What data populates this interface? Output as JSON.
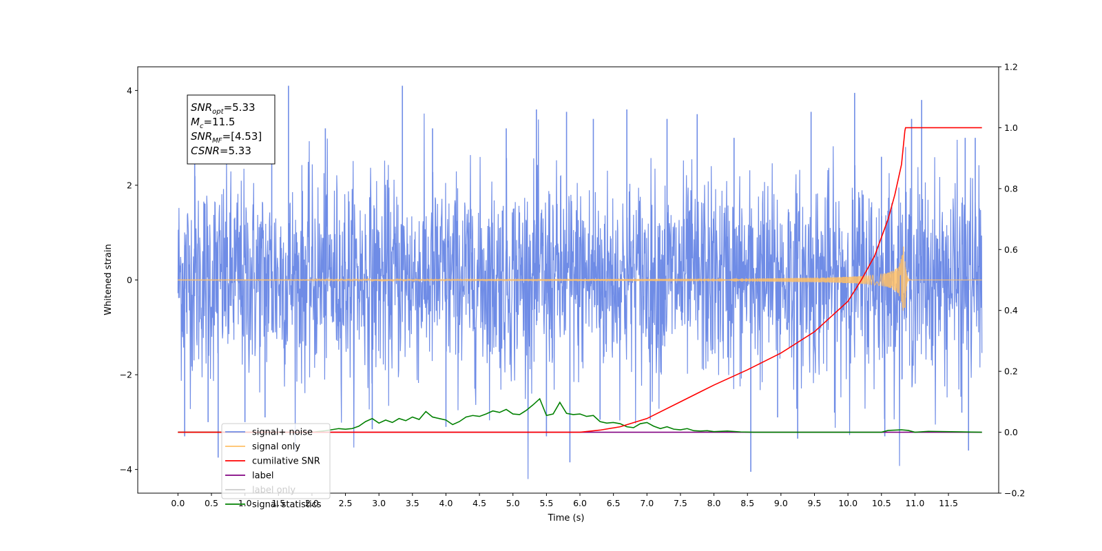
{
  "chart_data": {
    "type": "line",
    "xlabel": "Time (s)",
    "ylabel": "Whitened strain",
    "xlim": [
      -0.6,
      12.25
    ],
    "ylim": [
      -4.5,
      4.5
    ],
    "y2lim": [
      -0.2,
      1.2
    ],
    "x_ticks": [
      0.0,
      0.5,
      1.0,
      1.5,
      2.0,
      2.5,
      3.0,
      3.5,
      4.0,
      4.5,
      5.0,
      5.5,
      6.0,
      6.5,
      7.0,
      7.5,
      8.0,
      8.5,
      9.0,
      9.5,
      10.0,
      10.5,
      11.0,
      11.5
    ],
    "x_tick_labels": [
      "0.0",
      "0.5",
      "1.0",
      "1.5",
      "2.0",
      "2.5",
      "3.0",
      "3.5",
      "4.0",
      "4.5",
      "5.0",
      "5.5",
      "6.0",
      "6.5",
      "7.0",
      "7.5",
      "8.0",
      "8.5",
      "9.0",
      "9.5",
      "10.0",
      "10.5",
      "11.0",
      "11.5"
    ],
    "y_ticks": [
      -4,
      -2,
      0,
      2,
      4
    ],
    "y_tick_labels": [
      "−4",
      "−2",
      "0",
      "2",
      "4"
    ],
    "y2_ticks": [
      -0.2,
      0.0,
      0.2,
      0.4,
      0.6,
      0.8,
      1.0,
      1.2
    ],
    "y2_tick_labels": [
      "−0.2",
      "0.0",
      "0.2",
      "0.4",
      "0.6",
      "0.8",
      "1.0",
      "1.2"
    ],
    "grid": false,
    "legend_placement": "lower-left",
    "series": [
      {
        "name": "signal+ noise",
        "axis": "left",
        "color": "#6f8ce6",
        "x_range": [
          0.0,
          12.0
        ],
        "envelope": {
          "x": [
            0.0,
            12.0
          ],
          "y_low": [
            -2.3,
            -2.3
          ],
          "y_high": [
            2.4,
            2.4
          ]
        },
        "spikes": [
          [
            1.65,
            4.1
          ],
          [
            3.35,
            4.1
          ],
          [
            10.1,
            3.95
          ],
          [
            11.1,
            3.8
          ],
          [
            5.35,
            3.6
          ],
          [
            6.7,
            3.6
          ],
          [
            9.45,
            3.55
          ],
          [
            7.75,
            3.5
          ],
          [
            5.8,
            3.55
          ],
          [
            1.4,
            3.4
          ],
          [
            7.3,
            3.4
          ],
          [
            10.95,
            3.4
          ],
          [
            0.6,
            -3.75
          ],
          [
            5.85,
            -3.85
          ],
          [
            8.55,
            -4.05
          ],
          [
            11.8,
            -3.6
          ],
          [
            9.25,
            -3.35
          ],
          [
            5.5,
            -3.3
          ],
          [
            0.1,
            -3.3
          ],
          [
            0.45,
            -3.0
          ],
          [
            10.55,
            -3.3
          ],
          [
            1.0,
            -3.0
          ],
          [
            4.0,
            -3.1
          ],
          [
            2.9,
            -3.15
          ],
          [
            6.3,
            -2.95
          ],
          [
            7.05,
            -2.95
          ],
          [
            1.3,
            -2.9
          ],
          [
            8.95,
            -2.9
          ],
          [
            11.7,
            -2.8
          ],
          [
            9.8,
            -2.8
          ],
          [
            3.8,
            3.2
          ],
          [
            2.2,
            3.2
          ],
          [
            0.25,
            2.5
          ],
          [
            6.2,
            3.4
          ],
          [
            4.9,
            3.2
          ],
          [
            8.3,
            3.0
          ],
          [
            10.5,
            2.6
          ],
          [
            11.9,
            3.0
          ],
          [
            11.75,
            3.0
          ]
        ]
      },
      {
        "name": "signal only",
        "axis": "left",
        "color": "#ffbf66",
        "x_range": [
          0.0,
          12.0
        ],
        "chirp_merger_time": 10.85,
        "peak_amplitude": 0.8
      },
      {
        "name": "cumilative SNR",
        "axis": "right",
        "color": "#ff0000",
        "x": [
          0.0,
          6.0,
          6.3,
          6.6,
          7.0,
          7.5,
          8.0,
          8.5,
          9.0,
          9.5,
          10.0,
          10.2,
          10.4,
          10.6,
          10.7,
          10.8,
          10.85,
          10.86,
          12.0
        ],
        "y": [
          0.0,
          0.0,
          0.007,
          0.018,
          0.045,
          0.1,
          0.155,
          0.205,
          0.26,
          0.33,
          0.43,
          0.5,
          0.58,
          0.7,
          0.78,
          0.88,
          0.99,
          1.0,
          1.0
        ]
      },
      {
        "name": "label",
        "axis": "right",
        "color": "#800080",
        "x": [
          0.0,
          12.0
        ],
        "y": [
          0.0,
          0.0
        ]
      },
      {
        "name": "label only",
        "axis": "right",
        "color": "#cccccc",
        "hidden": true,
        "x": [],
        "y": []
      },
      {
        "name": "signal statistics",
        "axis": "right",
        "color": "#008000",
        "x": [
          0.0,
          2.0,
          2.2,
          2.4,
          2.5,
          2.6,
          2.7,
          2.8,
          2.9,
          3.0,
          3.1,
          3.2,
          3.3,
          3.4,
          3.5,
          3.6,
          3.7,
          3.8,
          3.9,
          4.0,
          4.1,
          4.2,
          4.3,
          4.4,
          4.5,
          4.6,
          4.7,
          4.8,
          4.9,
          5.0,
          5.1,
          5.2,
          5.3,
          5.4,
          5.5,
          5.6,
          5.7,
          5.8,
          5.9,
          6.0,
          6.1,
          6.2,
          6.3,
          6.4,
          6.5,
          6.6,
          6.7,
          6.8,
          6.9,
          7.0,
          7.1,
          7.2,
          7.3,
          7.4,
          7.5,
          7.6,
          7.7,
          7.8,
          7.9,
          8.0,
          8.2,
          8.4,
          8.6,
          10.5,
          10.6,
          10.8,
          10.9,
          11.0,
          11.2,
          12.0
        ],
        "y": [
          0.0,
          0.0,
          0.005,
          0.012,
          0.01,
          0.012,
          0.02,
          0.035,
          0.045,
          0.03,
          0.04,
          0.032,
          0.045,
          0.038,
          0.05,
          0.042,
          0.068,
          0.05,
          0.045,
          0.04,
          0.025,
          0.035,
          0.05,
          0.055,
          0.052,
          0.06,
          0.07,
          0.065,
          0.075,
          0.06,
          0.058,
          0.072,
          0.09,
          0.11,
          0.055,
          0.06,
          0.098,
          0.062,
          0.058,
          0.06,
          0.052,
          0.055,
          0.035,
          0.03,
          0.032,
          0.028,
          0.018,
          0.015,
          0.028,
          0.032,
          0.02,
          0.012,
          0.018,
          0.01,
          0.008,
          0.012,
          0.005,
          0.004,
          0.005,
          0.002,
          0.004,
          0.001,
          0.0,
          0.0,
          0.006,
          0.008,
          0.006,
          0.0,
          0.003,
          0.0
        ]
      }
    ],
    "annotation": [
      {
        "name": "SNR",
        "sub": "opt",
        "value": "=5.33"
      },
      {
        "name": "M",
        "sub": "c",
        "value": "=11.5"
      },
      {
        "name": "SNR",
        "sub": "MF",
        "value": "=[4.53]"
      },
      {
        "name": "CSNR",
        "sub": "",
        "value": "=5.33"
      }
    ]
  }
}
